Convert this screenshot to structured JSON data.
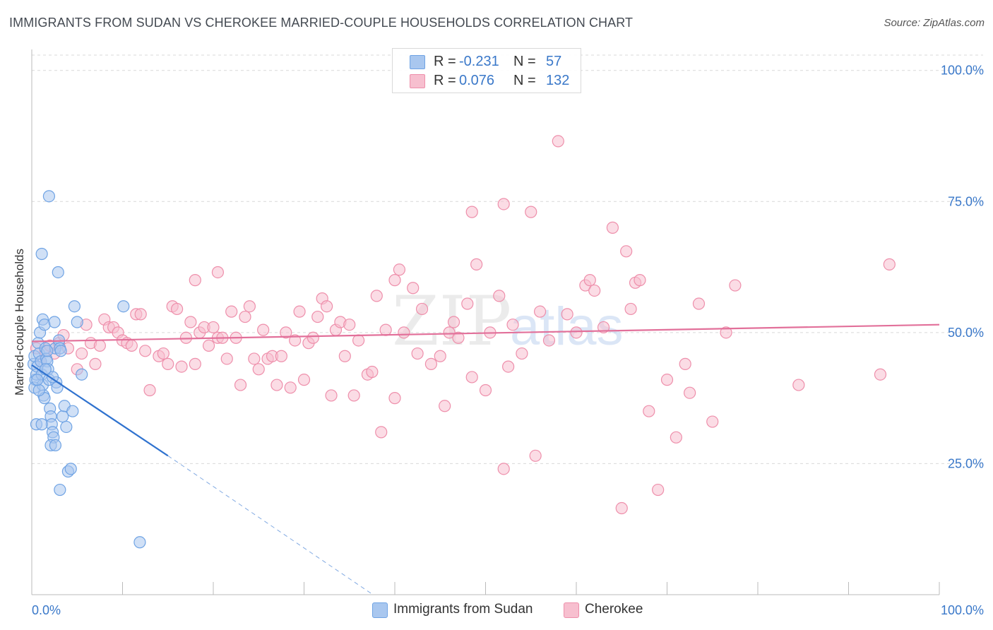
{
  "header": {
    "title": "IMMIGRANTS FROM SUDAN VS CHEROKEE MARRIED-COUPLE HOUSEHOLDS CORRELATION CHART",
    "source": "Source: ZipAtlas.com"
  },
  "watermark": {
    "zip": "ZIP",
    "atlas": "atlas"
  },
  "legend_top": {
    "rows": [
      {
        "r_label": "R =",
        "r_value": "-0.231",
        "n_label": "N =",
        "n_value": "57",
        "color": "#a9c7ef"
      },
      {
        "r_label": "R =",
        "r_value": "0.076",
        "n_label": "N =",
        "n_value": "132",
        "color": "#f7bfcf"
      }
    ]
  },
  "legend_bottom": {
    "items": [
      {
        "label": "Immigrants from Sudan",
        "color": "#a9c7ef"
      },
      {
        "label": "Cherokee",
        "color": "#f7bfcf"
      }
    ]
  },
  "chart_data": {
    "type": "scatter",
    "title": "IMMIGRANTS FROM SUDAN VS CHEROKEE MARRIED-COUPLE HOUSEHOLDS CORRELATION CHART",
    "xlabel": "",
    "ylabel": "Married-couple Households",
    "xlim": [
      0,
      100
    ],
    "ylim": [
      0,
      104
    ],
    "x_tick_labels": [
      "0.0%",
      "100.0%"
    ],
    "y_ticks": [
      25,
      50,
      75,
      100
    ],
    "y_tick_labels": [
      "25.0%",
      "50.0%",
      "75.0%",
      "100.0%"
    ],
    "grid": true,
    "legend": "top-center",
    "series": [
      {
        "name": "Immigrants from Sudan",
        "color": "#6fa3e4",
        "fill": "#a9c7ef",
        "trend": {
          "x1": 0,
          "y1": 43.8,
          "x2": 15,
          "y2": 26.5,
          "dash_to_x": 37.6,
          "dash_to_y": 0
        },
        "points": [
          [
            0.2,
            44
          ],
          [
            0.3,
            45.5
          ],
          [
            0.4,
            41
          ],
          [
            0.5,
            42
          ],
          [
            0.3,
            39.5
          ],
          [
            0.6,
            43.5
          ],
          [
            0.7,
            48
          ],
          [
            0.8,
            46
          ],
          [
            0.9,
            50
          ],
          [
            1.0,
            44.5
          ],
          [
            1.1,
            42
          ],
          [
            1.2,
            40
          ],
          [
            1.3,
            38
          ],
          [
            1.2,
            52.5
          ],
          [
            1.4,
            51.5
          ],
          [
            1.5,
            47
          ],
          [
            1.6,
            45
          ],
          [
            1.7,
            44.5
          ],
          [
            1.8,
            43
          ],
          [
            1.9,
            41
          ],
          [
            2.0,
            35.5
          ],
          [
            2.1,
            34
          ],
          [
            2.2,
            32.5
          ],
          [
            2.3,
            31
          ],
          [
            2.4,
            30
          ],
          [
            2.5,
            52
          ],
          [
            2.6,
            47
          ],
          [
            2.7,
            40.5
          ],
          [
            2.8,
            39.5
          ],
          [
            3.0,
            48.5
          ],
          [
            3.1,
            47
          ],
          [
            3.2,
            46.5
          ],
          [
            3.4,
            34
          ],
          [
            3.6,
            36
          ],
          [
            3.8,
            32
          ],
          [
            4.0,
            23.5
          ],
          [
            4.3,
            24
          ],
          [
            4.5,
            35
          ],
          [
            4.7,
            55
          ],
          [
            5.0,
            52
          ],
          [
            5.5,
            42
          ],
          [
            1.1,
            65
          ],
          [
            2.9,
            61.5
          ],
          [
            1.9,
            76
          ],
          [
            0.5,
            32.5
          ],
          [
            1.4,
            37.5
          ],
          [
            2.1,
            28.5
          ],
          [
            2.3,
            41.5
          ],
          [
            1.7,
            46.5
          ],
          [
            3.1,
            20
          ],
          [
            10.1,
            55
          ],
          [
            11.9,
            10
          ],
          [
            0.8,
            39
          ],
          [
            1.5,
            43
          ],
          [
            2.6,
            28.5
          ],
          [
            1.1,
            32.5
          ],
          [
            0.6,
            41
          ]
        ]
      },
      {
        "name": "Cherokee",
        "color": "#ee8fab",
        "fill": "#f7bfcf",
        "trend": {
          "x1": 0,
          "y1": 48.3,
          "x2": 100,
          "y2": 51.5
        },
        "points": [
          [
            0.5,
            47
          ],
          [
            1.0,
            44.5
          ],
          [
            1.5,
            46.5
          ],
          [
            2.0,
            47.5
          ],
          [
            2.5,
            46
          ],
          [
            3.0,
            48
          ],
          [
            3.5,
            49.5
          ],
          [
            4.0,
            47
          ],
          [
            5.0,
            43
          ],
          [
            5.5,
            46
          ],
          [
            6.0,
            51.5
          ],
          [
            6.5,
            48
          ],
          [
            7.0,
            44
          ],
          [
            7.5,
            47.5
          ],
          [
            8.0,
            52.5
          ],
          [
            8.5,
            51
          ],
          [
            9.0,
            51
          ],
          [
            9.5,
            50
          ],
          [
            10.0,
            48.5
          ],
          [
            10.5,
            48
          ],
          [
            11.0,
            47.5
          ],
          [
            11.5,
            53.5
          ],
          [
            12.0,
            53.5
          ],
          [
            12.5,
            46.5
          ],
          [
            13.0,
            39
          ],
          [
            14.0,
            45.5
          ],
          [
            14.5,
            46
          ],
          [
            15.0,
            44
          ],
          [
            15.5,
            55
          ],
          [
            16.0,
            54.5
          ],
          [
            16.5,
            43.5
          ],
          [
            17.0,
            49
          ],
          [
            17.5,
            52
          ],
          [
            18.0,
            44
          ],
          [
            18.5,
            50
          ],
          [
            19.0,
            51
          ],
          [
            19.5,
            47.5
          ],
          [
            20.0,
            51
          ],
          [
            20.5,
            49
          ],
          [
            21.0,
            49
          ],
          [
            21.5,
            45
          ],
          [
            22.0,
            54
          ],
          [
            22.5,
            49
          ],
          [
            23.0,
            40
          ],
          [
            23.5,
            53
          ],
          [
            24.0,
            55
          ],
          [
            24.5,
            45
          ],
          [
            25.0,
            43
          ],
          [
            25.5,
            50.5
          ],
          [
            26.0,
            45
          ],
          [
            26.5,
            45.5
          ],
          [
            27.0,
            40
          ],
          [
            27.5,
            45.5
          ],
          [
            28.0,
            50
          ],
          [
            28.5,
            39.5
          ],
          [
            29.0,
            48.5
          ],
          [
            29.5,
            54
          ],
          [
            30.0,
            41
          ],
          [
            30.5,
            48
          ],
          [
            31.0,
            49
          ],
          [
            31.5,
            53
          ],
          [
            32.0,
            56.5
          ],
          [
            32.5,
            55
          ],
          [
            33.0,
            38
          ],
          [
            33.5,
            50.5
          ],
          [
            34.0,
            52
          ],
          [
            34.5,
            45.5
          ],
          [
            35.0,
            51.5
          ],
          [
            35.5,
            38
          ],
          [
            36.0,
            48.5
          ],
          [
            37.0,
            42
          ],
          [
            37.5,
            42.5
          ],
          [
            38.0,
            57
          ],
          [
            38.5,
            31
          ],
          [
            39.0,
            50.5
          ],
          [
            40.0,
            37.5
          ],
          [
            40.5,
            62
          ],
          [
            41.0,
            50
          ],
          [
            42.0,
            58.5
          ],
          [
            42.5,
            46
          ],
          [
            43.0,
            54.5
          ],
          [
            44.0,
            44
          ],
          [
            45.0,
            45.5
          ],
          [
            45.5,
            36
          ],
          [
            46.0,
            50
          ],
          [
            47.0,
            49
          ],
          [
            48.0,
            55.5
          ],
          [
            48.5,
            41.5
          ],
          [
            49.0,
            63
          ],
          [
            50.0,
            39
          ],
          [
            50.5,
            50
          ],
          [
            51.5,
            57
          ],
          [
            52.0,
            24
          ],
          [
            52.5,
            43.5
          ],
          [
            53.0,
            51.5
          ],
          [
            54.0,
            46
          ],
          [
            55.0,
            73
          ],
          [
            55.5,
            26.5
          ],
          [
            56.0,
            54
          ],
          [
            57.0,
            48.5
          ],
          [
            58.0,
            86.5
          ],
          [
            59.0,
            53.5
          ],
          [
            60.0,
            50
          ],
          [
            61.0,
            59
          ],
          [
            61.5,
            60
          ],
          [
            62.0,
            58
          ],
          [
            63.0,
            51
          ],
          [
            64.0,
            70
          ],
          [
            65.0,
            16.5
          ],
          [
            65.5,
            65.5
          ],
          [
            66.0,
            54.5
          ],
          [
            66.5,
            59.5
          ],
          [
            67.0,
            60
          ],
          [
            68.0,
            35
          ],
          [
            69.0,
            20
          ],
          [
            70.0,
            41
          ],
          [
            71.0,
            30
          ],
          [
            72.0,
            44
          ],
          [
            72.5,
            38.5
          ],
          [
            73.5,
            55.5
          ],
          [
            75.0,
            33
          ],
          [
            76.5,
            50
          ],
          [
            77.5,
            59
          ],
          [
            84.5,
            40
          ],
          [
            93.5,
            42
          ],
          [
            94.5,
            63
          ],
          [
            40.0,
            60
          ],
          [
            46.5,
            52
          ],
          [
            52.0,
            74.5
          ],
          [
            18.0,
            60
          ],
          [
            20.5,
            61.5
          ],
          [
            48.5,
            73
          ]
        ]
      }
    ]
  }
}
